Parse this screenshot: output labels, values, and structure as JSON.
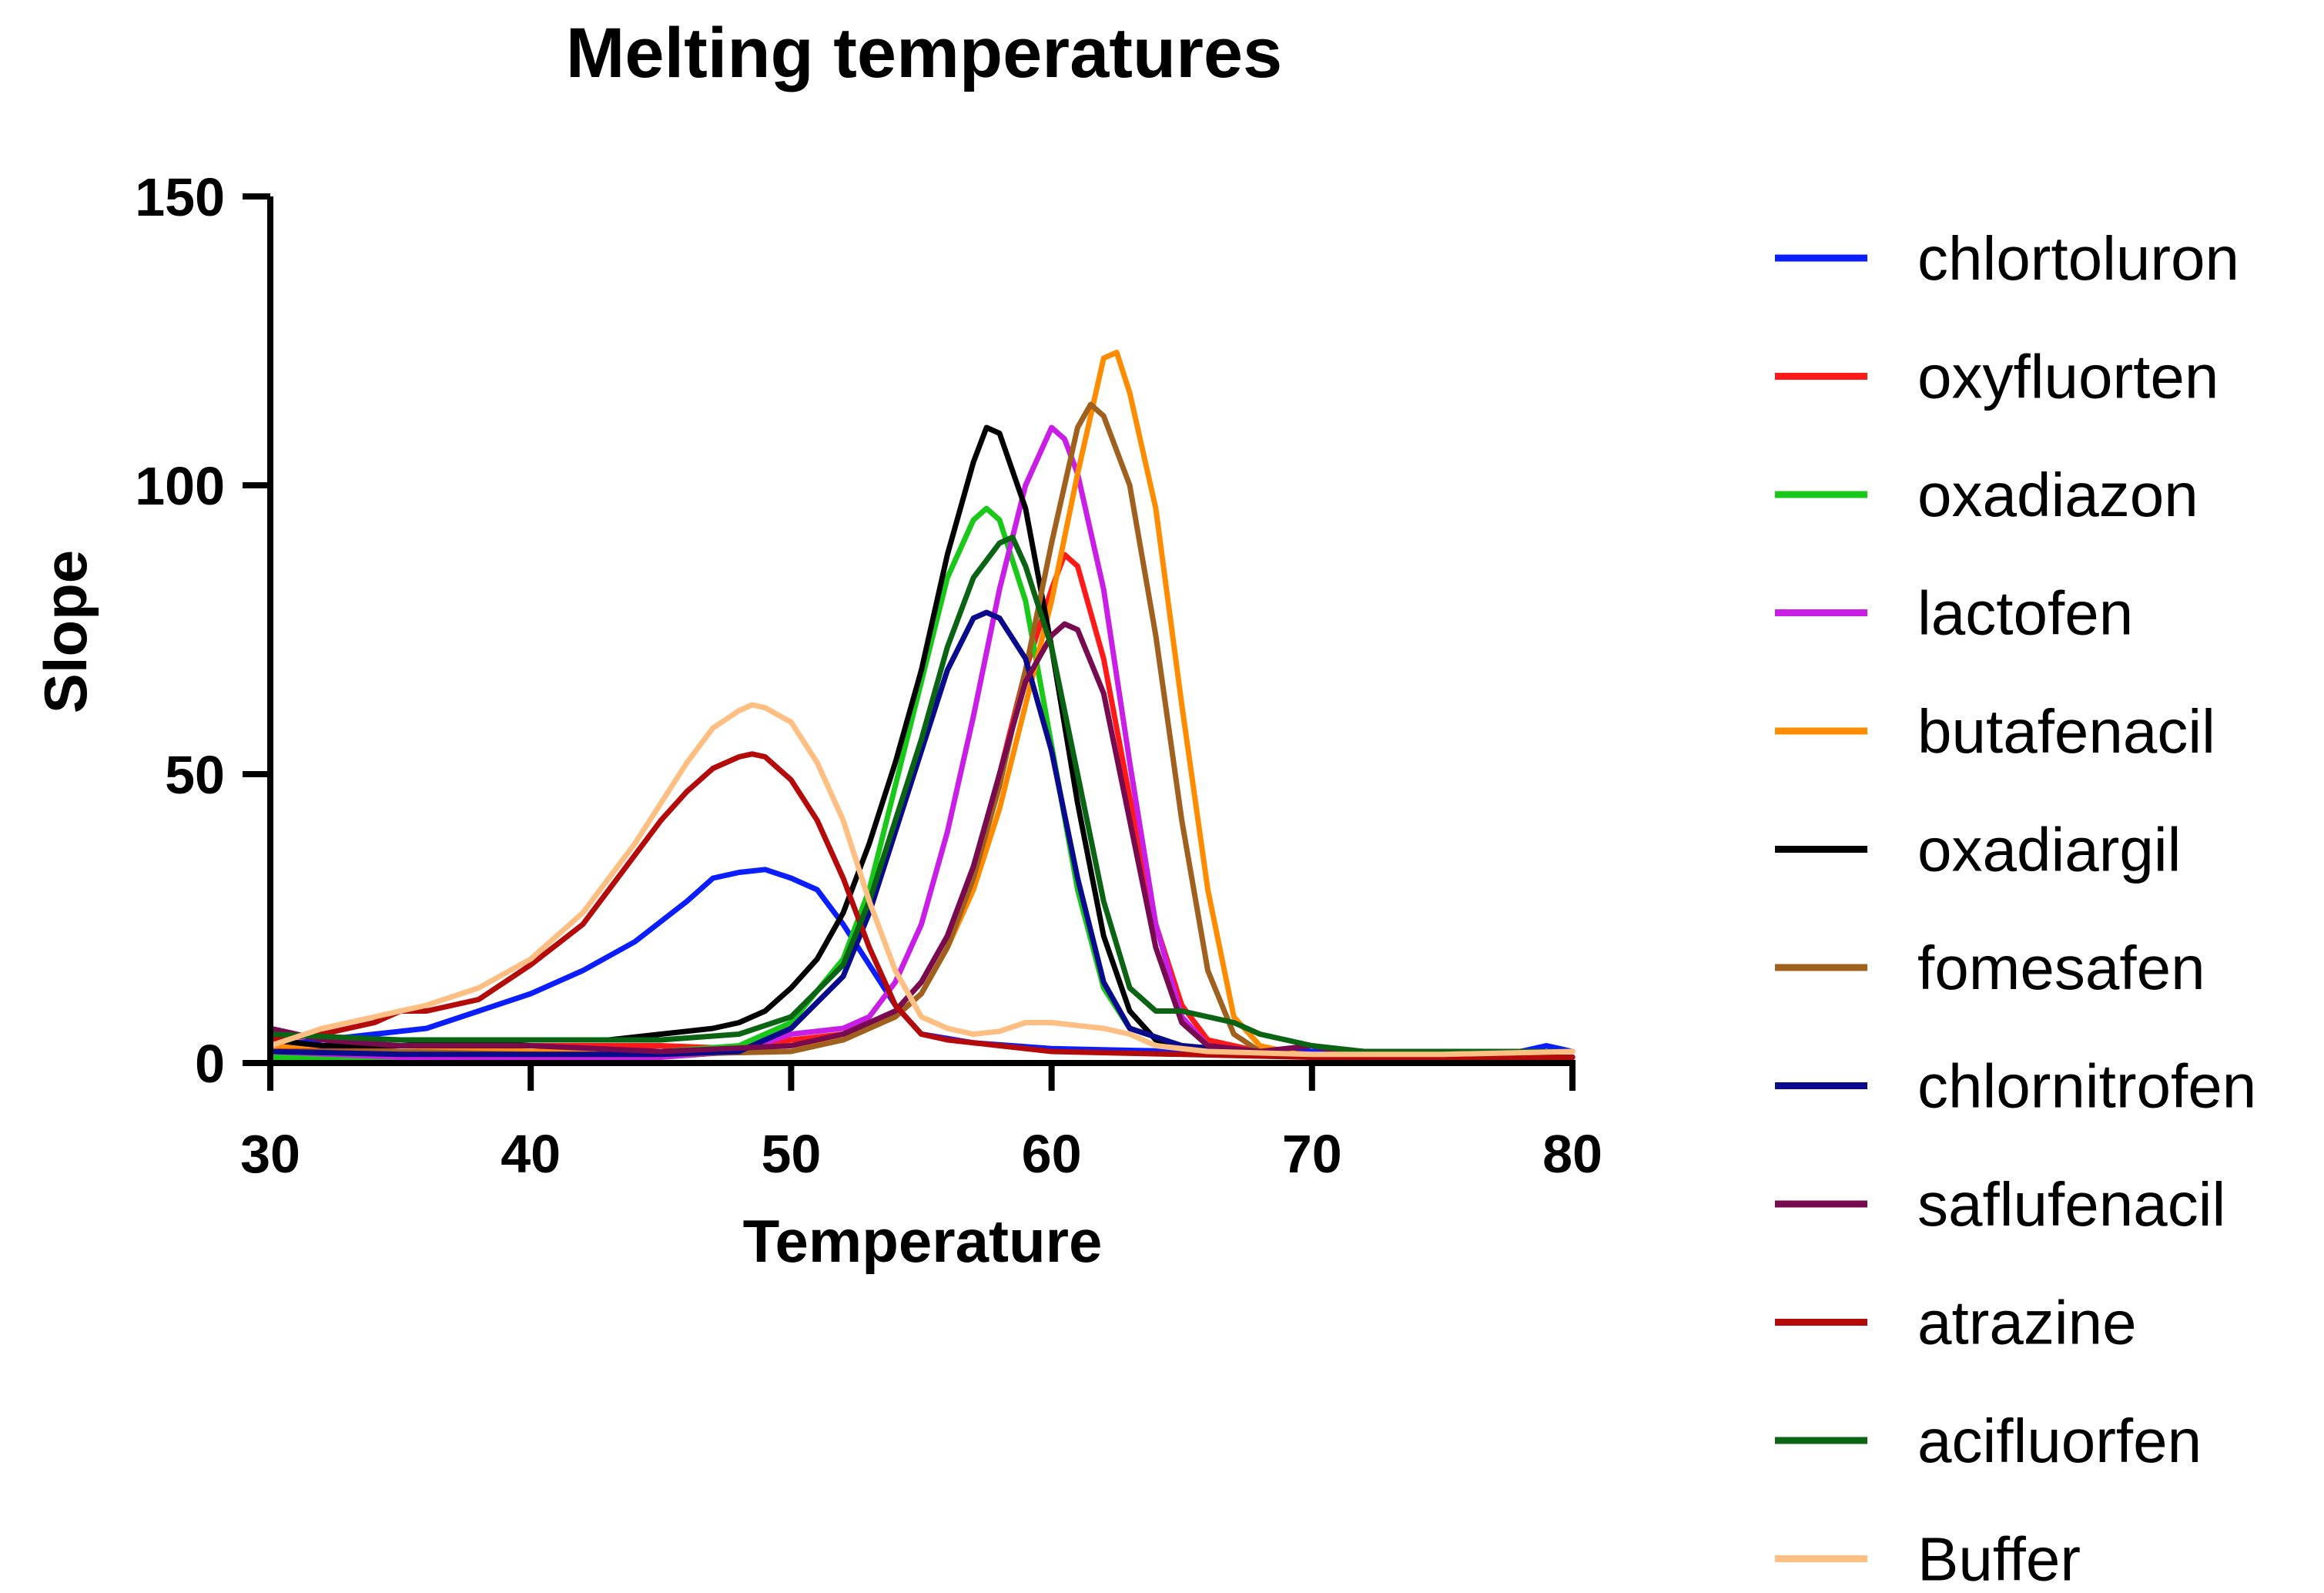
{
  "chart_data": {
    "type": "line",
    "title": "Melting temperatures",
    "xlabel": "Temperature",
    "ylabel": "Slope",
    "xlim": [
      30,
      80
    ],
    "ylim": [
      0,
      150
    ],
    "xticks": [
      30,
      40,
      50,
      60,
      70,
      80
    ],
    "yticks": [
      0,
      50,
      100,
      150
    ],
    "grid": false,
    "legend_position": "right",
    "series": [
      {
        "name": "chlortoluron",
        "color": "#0a1eff",
        "points": [
          [
            30,
            3
          ],
          [
            32,
            4
          ],
          [
            34,
            5
          ],
          [
            36,
            6
          ],
          [
            38,
            9
          ],
          [
            40,
            12
          ],
          [
            42,
            16
          ],
          [
            44,
            21
          ],
          [
            46,
            28
          ],
          [
            47,
            32
          ],
          [
            48,
            33
          ],
          [
            49,
            33.5
          ],
          [
            50,
            32
          ],
          [
            51,
            30
          ],
          [
            52,
            24
          ],
          [
            53,
            17
          ],
          [
            54,
            10
          ],
          [
            55,
            5
          ],
          [
            57,
            3.5
          ],
          [
            60,
            2.5
          ],
          [
            65,
            2
          ],
          [
            70,
            2
          ],
          [
            75,
            1.5
          ],
          [
            78,
            2
          ],
          [
            79,
            3
          ],
          [
            80,
            2
          ]
        ]
      },
      {
        "name": "oxyfluorten",
        "color": "#ff1a1a",
        "points": [
          [
            30,
            2
          ],
          [
            35,
            3
          ],
          [
            40,
            3
          ],
          [
            45,
            3
          ],
          [
            48,
            2.5
          ],
          [
            50,
            4
          ],
          [
            52,
            5
          ],
          [
            53,
            6
          ],
          [
            54,
            9
          ],
          [
            55,
            14
          ],
          [
            56,
            22
          ],
          [
            57,
            34
          ],
          [
            58,
            50
          ],
          [
            59,
            68
          ],
          [
            60,
            82
          ],
          [
            60.5,
            88
          ],
          [
            61,
            86
          ],
          [
            62,
            70
          ],
          [
            63,
            46
          ],
          [
            64,
            24
          ],
          [
            65,
            10
          ],
          [
            66,
            4
          ],
          [
            68,
            2
          ],
          [
            70,
            1.5
          ],
          [
            75,
            1
          ],
          [
            80,
            1
          ]
        ]
      },
      {
        "name": "oxadiazon",
        "color": "#19c819",
        "points": [
          [
            30,
            1
          ],
          [
            35,
            1
          ],
          [
            40,
            1.5
          ],
          [
            45,
            2
          ],
          [
            48,
            3
          ],
          [
            50,
            7
          ],
          [
            52,
            18
          ],
          [
            53,
            30
          ],
          [
            54,
            48
          ],
          [
            55,
            66
          ],
          [
            56,
            84
          ],
          [
            57,
            94
          ],
          [
            57.5,
            96
          ],
          [
            58,
            94
          ],
          [
            59,
            80
          ],
          [
            60,
            55
          ],
          [
            61,
            30
          ],
          [
            62,
            13
          ],
          [
            63,
            6
          ],
          [
            65,
            3
          ],
          [
            70,
            1
          ],
          [
            80,
            1
          ]
        ]
      },
      {
        "name": "lactofen",
        "color": "#c81ee6",
        "points": [
          [
            30,
            2
          ],
          [
            35,
            1
          ],
          [
            40,
            1
          ],
          [
            45,
            1
          ],
          [
            48,
            2
          ],
          [
            50,
            5
          ],
          [
            52,
            6
          ],
          [
            53,
            8
          ],
          [
            54,
            14
          ],
          [
            55,
            24
          ],
          [
            56,
            40
          ],
          [
            57,
            60
          ],
          [
            58,
            82
          ],
          [
            59,
            100
          ],
          [
            60,
            110
          ],
          [
            60.5,
            108
          ],
          [
            61,
            102
          ],
          [
            62,
            82
          ],
          [
            63,
            52
          ],
          [
            64,
            24
          ],
          [
            65,
            8
          ],
          [
            66,
            3
          ],
          [
            70,
            1
          ],
          [
            80,
            1
          ]
        ]
      },
      {
        "name": "butafenacil",
        "color": "#ff8c00",
        "points": [
          [
            30,
            3
          ],
          [
            35,
            3
          ],
          [
            40,
            2
          ],
          [
            45,
            2
          ],
          [
            50,
            3
          ],
          [
            52,
            4
          ],
          [
            54,
            8
          ],
          [
            55,
            12
          ],
          [
            56,
            20
          ],
          [
            57,
            30
          ],
          [
            58,
            44
          ],
          [
            59,
            62
          ],
          [
            60,
            80
          ],
          [
            61,
            102
          ],
          [
            62,
            122
          ],
          [
            62.5,
            123
          ],
          [
            63,
            116
          ],
          [
            64,
            96
          ],
          [
            65,
            62
          ],
          [
            66,
            30
          ],
          [
            67,
            8
          ],
          [
            68,
            3
          ],
          [
            70,
            1
          ],
          [
            80,
            1
          ]
        ]
      },
      {
        "name": "oxadiargil",
        "color": "#000000",
        "points": [
          [
            30,
            4
          ],
          [
            32,
            3
          ],
          [
            35,
            3
          ],
          [
            40,
            4
          ],
          [
            43,
            4
          ],
          [
            45,
            5
          ],
          [
            47,
            6
          ],
          [
            48,
            7
          ],
          [
            49,
            9
          ],
          [
            50,
            13
          ],
          [
            51,
            18
          ],
          [
            52,
            26
          ],
          [
            53,
            38
          ],
          [
            54,
            52
          ],
          [
            55,
            68
          ],
          [
            56,
            88
          ],
          [
            57,
            104
          ],
          [
            57.5,
            110
          ],
          [
            58,
            109
          ],
          [
            59,
            96
          ],
          [
            60,
            72
          ],
          [
            61,
            45
          ],
          [
            62,
            22
          ],
          [
            63,
            9
          ],
          [
            64,
            4
          ],
          [
            66,
            2
          ],
          [
            70,
            1
          ],
          [
            80,
            1
          ]
        ]
      },
      {
        "name": "fomesafen",
        "color": "#a0601e",
        "points": [
          [
            30,
            2
          ],
          [
            35,
            2
          ],
          [
            40,
            1.5
          ],
          [
            45,
            1.5
          ],
          [
            50,
            2
          ],
          [
            52,
            4
          ],
          [
            54,
            8
          ],
          [
            55,
            12
          ],
          [
            56,
            20
          ],
          [
            57,
            32
          ],
          [
            58,
            48
          ],
          [
            59,
            68
          ],
          [
            60,
            90
          ],
          [
            61,
            110
          ],
          [
            61.5,
            114
          ],
          [
            62,
            112
          ],
          [
            63,
            100
          ],
          [
            64,
            74
          ],
          [
            65,
            42
          ],
          [
            66,
            16
          ],
          [
            67,
            5
          ],
          [
            68,
            2
          ],
          [
            70,
            1
          ],
          [
            80,
            1
          ]
        ]
      },
      {
        "name": "chlornitrofen",
        "color": "#0a0a8c",
        "points": [
          [
            30,
            2
          ],
          [
            35,
            1.5
          ],
          [
            40,
            1.5
          ],
          [
            45,
            1.5
          ],
          [
            48,
            2
          ],
          [
            50,
            6
          ],
          [
            52,
            15
          ],
          [
            53,
            26
          ],
          [
            54,
            40
          ],
          [
            55,
            54
          ],
          [
            56,
            68
          ],
          [
            57,
            77
          ],
          [
            57.5,
            78
          ],
          [
            58,
            77
          ],
          [
            59,
            70
          ],
          [
            60,
            54
          ],
          [
            61,
            32
          ],
          [
            62,
            14
          ],
          [
            63,
            6
          ],
          [
            65,
            3
          ],
          [
            70,
            1
          ],
          [
            80,
            1
          ]
        ]
      },
      {
        "name": "saflufenacil",
        "color": "#780a50",
        "points": [
          [
            30,
            6
          ],
          [
            32,
            4
          ],
          [
            35,
            3
          ],
          [
            40,
            3
          ],
          [
            45,
            2
          ],
          [
            50,
            3
          ],
          [
            52,
            5
          ],
          [
            54,
            9
          ],
          [
            55,
            14
          ],
          [
            56,
            22
          ],
          [
            57,
            34
          ],
          [
            58,
            50
          ],
          [
            59,
            66
          ],
          [
            60,
            74
          ],
          [
            60.5,
            76
          ],
          [
            61,
            75
          ],
          [
            62,
            64
          ],
          [
            63,
            42
          ],
          [
            64,
            20
          ],
          [
            65,
            7
          ],
          [
            66,
            3
          ],
          [
            68,
            2
          ],
          [
            70,
            3
          ],
          [
            72,
            1
          ],
          [
            80,
            1
          ]
        ]
      },
      {
        "name": "atrazine",
        "color": "#b40a0a",
        "points": [
          [
            30,
            4
          ],
          [
            32,
            5
          ],
          [
            34,
            7
          ],
          [
            35,
            9
          ],
          [
            36,
            9
          ],
          [
            38,
            11
          ],
          [
            40,
            17
          ],
          [
            42,
            24
          ],
          [
            43,
            30
          ],
          [
            44,
            36
          ],
          [
            45,
            42
          ],
          [
            46,
            47
          ],
          [
            47,
            51
          ],
          [
            48,
            53
          ],
          [
            48.5,
            53.5
          ],
          [
            49,
            53
          ],
          [
            50,
            49
          ],
          [
            51,
            42
          ],
          [
            52,
            32
          ],
          [
            53,
            20
          ],
          [
            54,
            10
          ],
          [
            55,
            5
          ],
          [
            56,
            4
          ],
          [
            58,
            3
          ],
          [
            60,
            2
          ],
          [
            65,
            1.5
          ],
          [
            70,
            1
          ],
          [
            80,
            1
          ]
        ]
      },
      {
        "name": "acifluorfen",
        "color": "#0a6414",
        "points": [
          [
            30,
            5
          ],
          [
            35,
            4
          ],
          [
            40,
            4
          ],
          [
            45,
            4
          ],
          [
            48,
            5
          ],
          [
            50,
            8
          ],
          [
            52,
            17
          ],
          [
            53,
            28
          ],
          [
            54,
            42
          ],
          [
            55,
            56
          ],
          [
            56,
            72
          ],
          [
            57,
            84
          ],
          [
            58,
            90
          ],
          [
            58.5,
            91
          ],
          [
            59,
            86
          ],
          [
            60,
            72
          ],
          [
            61,
            50
          ],
          [
            62,
            28
          ],
          [
            63,
            13
          ],
          [
            64,
            9
          ],
          [
            65,
            9
          ],
          [
            66,
            8
          ],
          [
            67,
            7
          ],
          [
            68,
            5
          ],
          [
            69,
            4
          ],
          [
            70,
            3
          ],
          [
            72,
            2
          ],
          [
            80,
            2
          ]
        ]
      },
      {
        "name": "Buffer",
        "color": "#ffbe82",
        "points": [
          [
            30,
            3
          ],
          [
            32,
            6
          ],
          [
            34,
            8
          ],
          [
            36,
            10
          ],
          [
            38,
            13
          ],
          [
            40,
            18
          ],
          [
            42,
            26
          ],
          [
            43,
            32
          ],
          [
            44,
            38
          ],
          [
            45,
            45
          ],
          [
            46,
            52
          ],
          [
            47,
            58
          ],
          [
            48,
            61
          ],
          [
            48.5,
            62
          ],
          [
            49,
            61.5
          ],
          [
            50,
            59
          ],
          [
            51,
            52
          ],
          [
            52,
            42
          ],
          [
            53,
            28
          ],
          [
            54,
            16
          ],
          [
            55,
            8
          ],
          [
            56,
            6
          ],
          [
            57,
            5
          ],
          [
            58,
            5.5
          ],
          [
            59,
            7
          ],
          [
            60,
            7
          ],
          [
            61,
            6.5
          ],
          [
            62,
            6
          ],
          [
            63,
            5
          ],
          [
            64,
            3
          ],
          [
            66,
            2
          ],
          [
            70,
            1.5
          ],
          [
            75,
            1.5
          ],
          [
            80,
            2
          ]
        ]
      }
    ]
  }
}
